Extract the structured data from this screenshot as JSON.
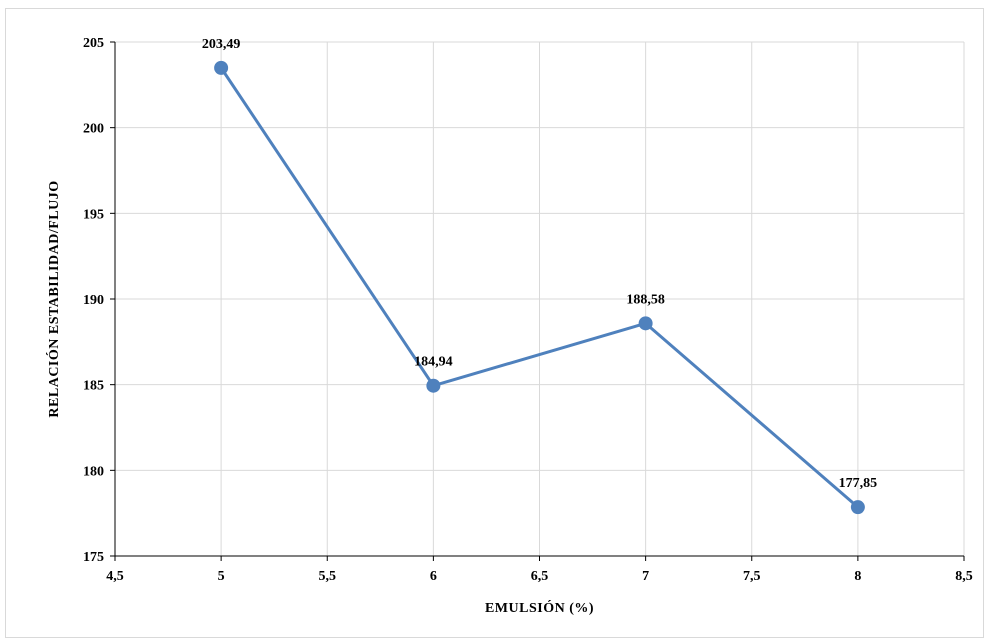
{
  "chart_data": {
    "type": "line",
    "title": "",
    "xlabel": "EMULSIÓN (%)",
    "ylabel": "RELACIÓN ESTABILIDAD/FLUJO",
    "xlim": [
      4.5,
      8.5
    ],
    "ylim": [
      175,
      205
    ],
    "x_ticks": [
      "4,5",
      "5",
      "5,5",
      "6",
      "6,5",
      "7",
      "7,5",
      "8",
      "8,5"
    ],
    "y_ticks": [
      "175",
      "180",
      "185",
      "190",
      "195",
      "200",
      "205"
    ],
    "grid": true,
    "series": [
      {
        "color": "#4f81bd",
        "x": [
          5,
          6,
          7,
          8
        ],
        "y": [
          203.49,
          184.94,
          188.58,
          177.85
        ],
        "labels": [
          "203,49",
          "184,94",
          "188,58",
          "177,85"
        ]
      }
    ]
  }
}
